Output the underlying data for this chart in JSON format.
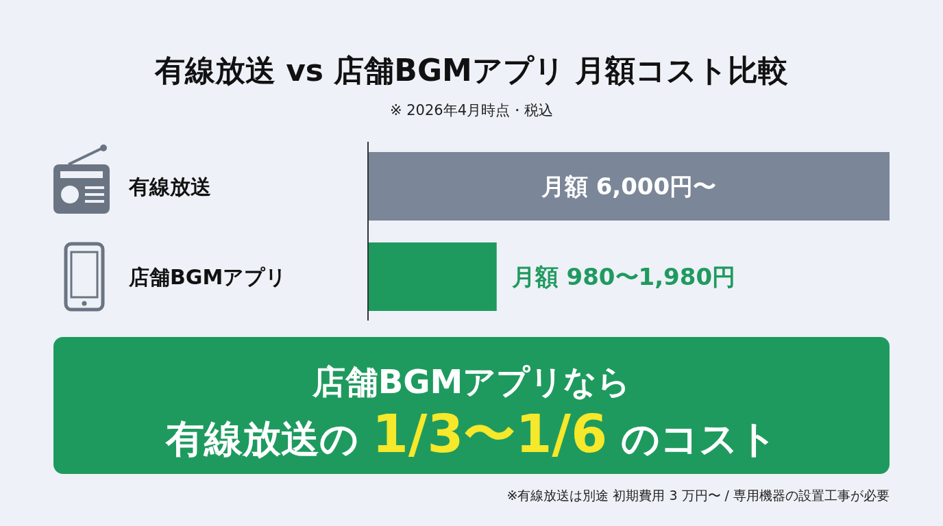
{
  "chart_data": {
    "type": "bar",
    "orientation": "horizontal",
    "title": "有線放送 vs 店舗BGMアプリ 月額コスト比較",
    "subtitle": "※ 2026年4月時点・税込",
    "categories": [
      "有線放送",
      "店舗BGMアプリ"
    ],
    "values": [
      6000,
      1480
    ],
    "colors": [
      "#7b8698",
      "#1f9a5f"
    ],
    "value_labels": [
      "月額 6,000円〜",
      "月額 980〜1,980円"
    ],
    "annotations": [
      "店舗BGMアプリなら",
      "有線放送の **1/3〜1/6** のコスト",
      "※有線放送は別途 初期費用 3 万円〜 / 専用機器の設置工事が必要"
    ]
  }
}
